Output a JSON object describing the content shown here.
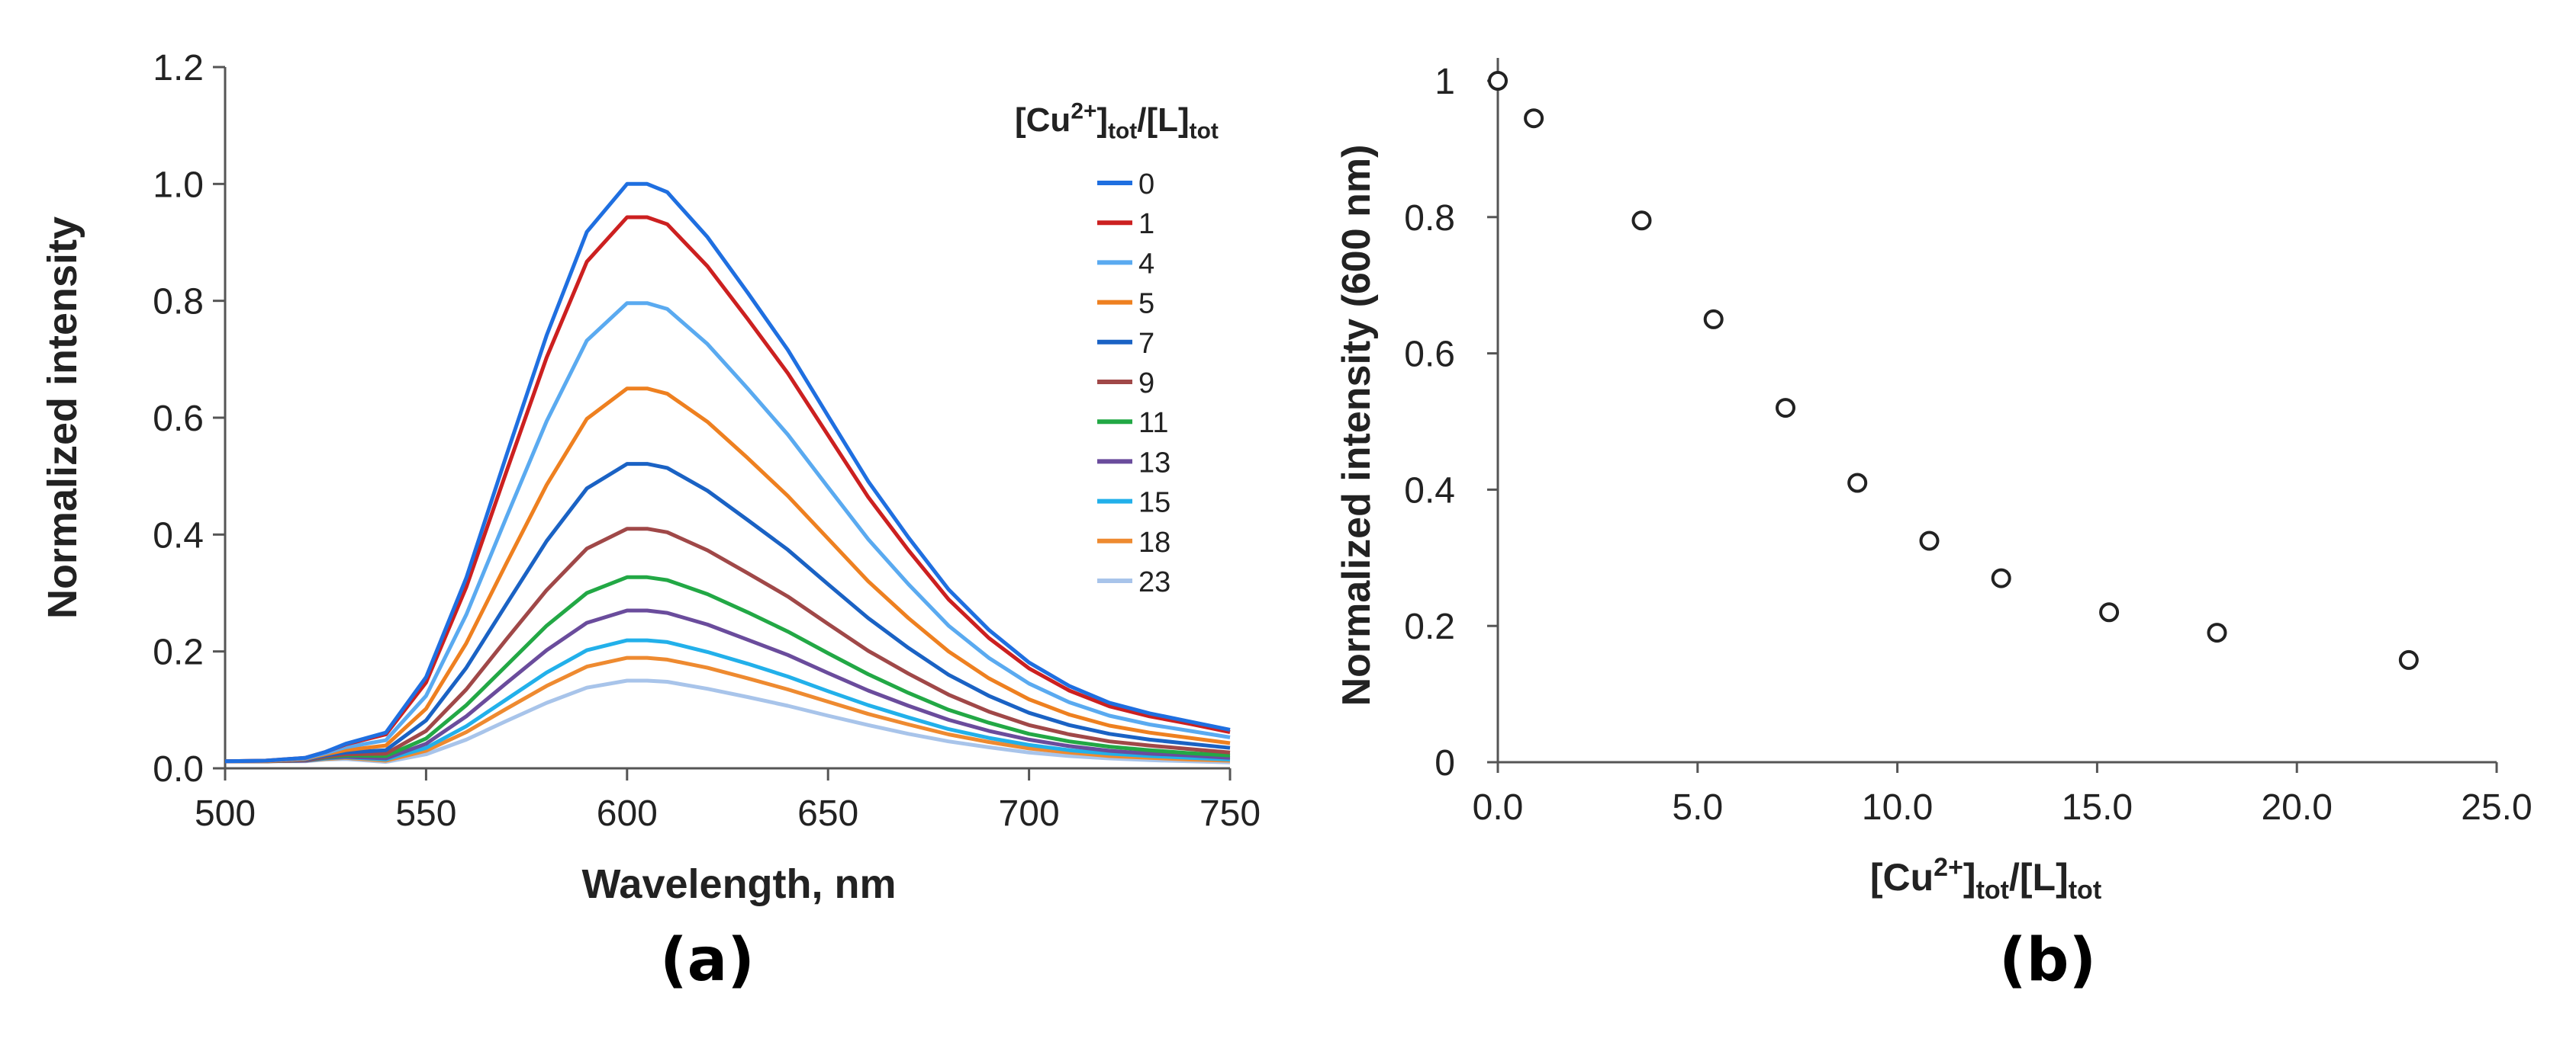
{
  "chart_data": [
    {
      "type": "line",
      "panel": "(a)",
      "title": "",
      "xlabel": "Wavelength, nm",
      "ylabel": "Normalized  intensity",
      "xlim": [
        500,
        750
      ],
      "ylim": [
        0,
        1.2
      ],
      "xticks": [
        500,
        550,
        600,
        650,
        700,
        750
      ],
      "xtick_labels": [
        "500",
        "550",
        "600",
        "650",
        "700",
        "750"
      ],
      "yticks": [
        0,
        0.2,
        0.4,
        0.6,
        0.8,
        1.0,
        1.2
      ],
      "ytick_labels": [
        "0.0",
        "0.2",
        "0.4",
        "0.6",
        "0.8",
        "1.0",
        "1.2"
      ],
      "grid": false,
      "legend_title": "[Cu²⁺]tot/[L]tot",
      "legend_position": "top-right",
      "x": [
        500,
        510,
        520,
        525,
        530,
        540,
        550,
        560,
        570,
        580,
        590,
        600,
        605,
        610,
        620,
        630,
        640,
        650,
        660,
        670,
        680,
        690,
        700,
        710,
        720,
        730,
        740,
        750
      ],
      "series": [
        {
          "name": "0",
          "color": "#1f6fe0",
          "values": [
            0.012,
            0.013,
            0.018,
            0.028,
            0.042,
            0.061,
            0.156,
            0.326,
            0.536,
            0.741,
            0.918,
            1.0,
            1.0,
            0.986,
            0.909,
            0.814,
            0.716,
            0.603,
            0.491,
            0.395,
            0.306,
            0.237,
            0.181,
            0.141,
            0.112,
            0.094,
            0.08,
            0.066
          ]
        },
        {
          "name": "1",
          "color": "#cc2020",
          "values": [
            0.012,
            0.013,
            0.018,
            0.028,
            0.041,
            0.058,
            0.147,
            0.31,
            0.508,
            0.703,
            0.867,
            0.943,
            0.943,
            0.931,
            0.859,
            0.769,
            0.676,
            0.57,
            0.464,
            0.373,
            0.289,
            0.223,
            0.171,
            0.133,
            0.106,
            0.089,
            0.076,
            0.062
          ]
        },
        {
          "name": "4",
          "color": "#5aaaf0",
          "values": [
            0.012,
            0.013,
            0.017,
            0.026,
            0.036,
            0.048,
            0.124,
            0.263,
            0.43,
            0.594,
            0.732,
            0.796,
            0.796,
            0.786,
            0.726,
            0.65,
            0.571,
            0.481,
            0.392,
            0.315,
            0.244,
            0.189,
            0.145,
            0.113,
            0.09,
            0.075,
            0.064,
            0.053
          ]
        },
        {
          "name": "5",
          "color": "#ee8020",
          "values": [
            0.012,
            0.012,
            0.016,
            0.024,
            0.031,
            0.039,
            0.102,
            0.214,
            0.351,
            0.485,
            0.598,
            0.65,
            0.65,
            0.641,
            0.593,
            0.531,
            0.466,
            0.393,
            0.32,
            0.257,
            0.2,
            0.154,
            0.118,
            0.092,
            0.073,
            0.061,
            0.052,
            0.043
          ]
        },
        {
          "name": "7",
          "color": "#1a62c4",
          "values": [
            0.012,
            0.012,
            0.015,
            0.022,
            0.027,
            0.031,
            0.082,
            0.172,
            0.281,
            0.389,
            0.479,
            0.521,
            0.521,
            0.514,
            0.475,
            0.425,
            0.374,
            0.315,
            0.257,
            0.206,
            0.16,
            0.124,
            0.095,
            0.074,
            0.059,
            0.049,
            0.042,
            0.035
          ]
        },
        {
          "name": "9",
          "color": "#a04848",
          "values": [
            0.012,
            0.012,
            0.014,
            0.02,
            0.024,
            0.025,
            0.064,
            0.135,
            0.221,
            0.305,
            0.376,
            0.41,
            0.41,
            0.404,
            0.373,
            0.334,
            0.294,
            0.247,
            0.201,
            0.162,
            0.126,
            0.097,
            0.074,
            0.058,
            0.046,
            0.039,
            0.033,
            0.027
          ]
        },
        {
          "name": "11",
          "color": "#22a845",
          "values": [
            0.012,
            0.012,
            0.014,
            0.019,
            0.022,
            0.021,
            0.051,
            0.108,
            0.176,
            0.244,
            0.3,
            0.327,
            0.327,
            0.322,
            0.298,
            0.267,
            0.234,
            0.197,
            0.161,
            0.129,
            0.1,
            0.078,
            0.059,
            0.046,
            0.037,
            0.031,
            0.026,
            0.022
          ]
        },
        {
          "name": "13",
          "color": "#6a4c9c",
          "values": [
            0.012,
            0.012,
            0.013,
            0.018,
            0.02,
            0.017,
            0.042,
            0.089,
            0.146,
            0.202,
            0.249,
            0.27,
            0.27,
            0.266,
            0.246,
            0.22,
            0.194,
            0.163,
            0.133,
            0.107,
            0.083,
            0.064,
            0.049,
            0.038,
            0.03,
            0.025,
            0.022,
            0.018
          ]
        },
        {
          "name": "15",
          "color": "#22b0ea",
          "values": [
            0.012,
            0.012,
            0.013,
            0.017,
            0.019,
            0.015,
            0.035,
            0.072,
            0.118,
            0.164,
            0.202,
            0.219,
            0.219,
            0.216,
            0.199,
            0.179,
            0.157,
            0.132,
            0.108,
            0.087,
            0.067,
            0.052,
            0.04,
            0.031,
            0.025,
            0.021,
            0.018,
            0.015
          ]
        },
        {
          "name": "18",
          "color": "#ee8a30",
          "values": [
            0.012,
            0.012,
            0.013,
            0.016,
            0.018,
            0.013,
            0.03,
            0.062,
            0.102,
            0.141,
            0.174,
            0.189,
            0.189,
            0.186,
            0.172,
            0.154,
            0.135,
            0.114,
            0.093,
            0.075,
            0.058,
            0.045,
            0.034,
            0.027,
            0.021,
            0.018,
            0.015,
            0.013
          ]
        },
        {
          "name": "23",
          "color": "#a8c4ea",
          "values": [
            0.012,
            0.012,
            0.012,
            0.015,
            0.016,
            0.011,
            0.024,
            0.049,
            0.081,
            0.112,
            0.138,
            0.15,
            0.15,
            0.148,
            0.136,
            0.122,
            0.107,
            0.09,
            0.074,
            0.059,
            0.046,
            0.036,
            0.027,
            0.021,
            0.017,
            0.014,
            0.012,
            0.01
          ]
        }
      ]
    },
    {
      "type": "scatter",
      "panel": "(b)",
      "title": "",
      "xlabel": "[Cu²⁺]tot/[L]tot",
      "ylabel": "Normalized  intensity (600 nm)",
      "xlim": [
        0,
        25
      ],
      "ylim": [
        0,
        1
      ],
      "xticks": [
        0,
        5,
        10,
        15,
        20,
        25
      ],
      "xtick_labels": [
        "0.0",
        "5.0",
        "10.0",
        "15.0",
        "20.0",
        "25.0"
      ],
      "yticks": [
        0,
        0.2,
        0.4,
        0.6,
        0.8,
        1
      ],
      "ytick_labels": [
        "0",
        "0.2",
        "0.4",
        "0.6",
        "0.8",
        "1"
      ],
      "grid": false,
      "x": [
        0,
        0.9,
        3.6,
        5.4,
        7.2,
        9.0,
        10.8,
        12.6,
        15.3,
        18.0,
        22.8
      ],
      "y": [
        1.0,
        0.945,
        0.795,
        0.65,
        0.52,
        0.41,
        0.325,
        0.27,
        0.22,
        0.19,
        0.15
      ]
    }
  ],
  "panel_labels": {
    "a": "(a)",
    "b": "(b)"
  }
}
